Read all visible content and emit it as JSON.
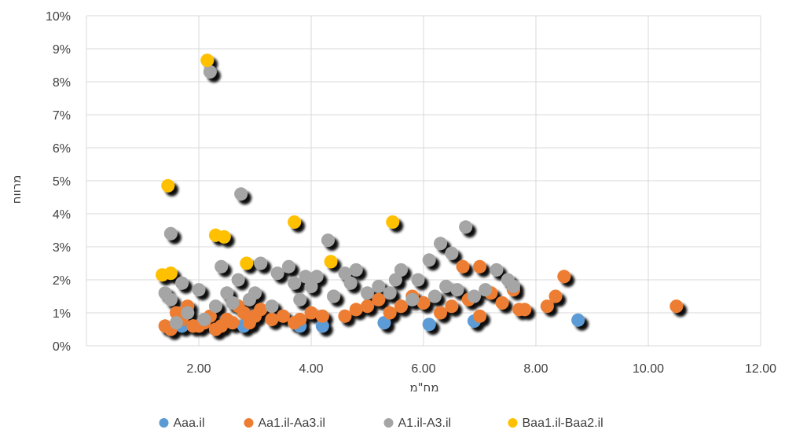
{
  "chart_data": {
    "type": "scatter",
    "title": "",
    "xlabel": "מח\"מ",
    "ylabel": "מרווח",
    "xlim": [
      0,
      12
    ],
    "ylim": [
      0,
      0.1
    ],
    "x_ticks": [
      "2.00",
      "4.00",
      "6.00",
      "8.00",
      "10.00",
      "12.00"
    ],
    "y_ticks": [
      "0%",
      "1%",
      "2%",
      "3%",
      "4%",
      "5%",
      "6%",
      "7%",
      "8%",
      "9%",
      "10%"
    ],
    "grid": true,
    "legend_position": "bottom",
    "series": [
      {
        "name": "Aaa.il",
        "color": "#5b9bd5",
        "points": [
          [
            1.7,
            0.006
          ],
          [
            2.8,
            0.006
          ],
          [
            3.8,
            0.006
          ],
          [
            4.2,
            0.006
          ],
          [
            5.3,
            0.007
          ],
          [
            6.1,
            0.0065
          ],
          [
            6.9,
            0.0075
          ],
          [
            8.75,
            0.0078
          ]
        ]
      },
      {
        "name": "Aa1.il-Aa3.il",
        "color": "#ed7d31",
        "points": [
          [
            1.4,
            0.006
          ],
          [
            1.5,
            0.005
          ],
          [
            1.6,
            0.01
          ],
          [
            1.7,
            0.008
          ],
          [
            1.8,
            0.012
          ],
          [
            1.9,
            0.006
          ],
          [
            2.0,
            0.006
          ],
          [
            2.1,
            0.007
          ],
          [
            2.2,
            0.009
          ],
          [
            2.3,
            0.005
          ],
          [
            2.4,
            0.006
          ],
          [
            2.5,
            0.008
          ],
          [
            2.6,
            0.007
          ],
          [
            2.7,
            0.012
          ],
          [
            2.8,
            0.01
          ],
          [
            2.9,
            0.007
          ],
          [
            3.0,
            0.009
          ],
          [
            3.1,
            0.011
          ],
          [
            3.3,
            0.008
          ],
          [
            3.5,
            0.009
          ],
          [
            3.7,
            0.007
          ],
          [
            3.8,
            0.008
          ],
          [
            4.0,
            0.01
          ],
          [
            4.2,
            0.009
          ],
          [
            4.4,
            0.015
          ],
          [
            4.6,
            0.009
          ],
          [
            4.8,
            0.011
          ],
          [
            5.0,
            0.012
          ],
          [
            5.2,
            0.014
          ],
          [
            5.4,
            0.01
          ],
          [
            5.6,
            0.012
          ],
          [
            5.8,
            0.015
          ],
          [
            6.0,
            0.013
          ],
          [
            6.3,
            0.01
          ],
          [
            6.5,
            0.012
          ],
          [
            6.7,
            0.024
          ],
          [
            6.8,
            0.014
          ],
          [
            7.0,
            0.024
          ],
          [
            7.0,
            0.009
          ],
          [
            7.2,
            0.016
          ],
          [
            7.4,
            0.013
          ],
          [
            7.6,
            0.017
          ],
          [
            7.7,
            0.011
          ],
          [
            7.8,
            0.011
          ],
          [
            8.2,
            0.012
          ],
          [
            8.35,
            0.015
          ],
          [
            8.5,
            0.021
          ],
          [
            10.5,
            0.012
          ]
        ]
      },
      {
        "name": "A1.il-A3.il",
        "color": "#a5a5a5",
        "points": [
          [
            1.4,
            0.016
          ],
          [
            1.5,
            0.034
          ],
          [
            1.5,
            0.014
          ],
          [
            1.6,
            0.007
          ],
          [
            1.7,
            0.019
          ],
          [
            1.8,
            0.01
          ],
          [
            2.0,
            0.017
          ],
          [
            2.1,
            0.008
          ],
          [
            2.2,
            0.083
          ],
          [
            2.3,
            0.012
          ],
          [
            2.4,
            0.024
          ],
          [
            2.5,
            0.016
          ],
          [
            2.6,
            0.013
          ],
          [
            2.7,
            0.02
          ],
          [
            2.75,
            0.046
          ],
          [
            2.9,
            0.014
          ],
          [
            3.0,
            0.016
          ],
          [
            3.1,
            0.025
          ],
          [
            3.3,
            0.012
          ],
          [
            3.4,
            0.022
          ],
          [
            3.6,
            0.024
          ],
          [
            3.7,
            0.019
          ],
          [
            3.8,
            0.014
          ],
          [
            3.9,
            0.021
          ],
          [
            4.0,
            0.018
          ],
          [
            4.1,
            0.021
          ],
          [
            4.3,
            0.032
          ],
          [
            4.4,
            0.015
          ],
          [
            4.6,
            0.022
          ],
          [
            4.7,
            0.019
          ],
          [
            4.8,
            0.023
          ],
          [
            5.0,
            0.016
          ],
          [
            5.2,
            0.018
          ],
          [
            5.4,
            0.016
          ],
          [
            5.5,
            0.02
          ],
          [
            5.6,
            0.023
          ],
          [
            5.8,
            0.014
          ],
          [
            5.9,
            0.02
          ],
          [
            6.1,
            0.026
          ],
          [
            6.2,
            0.015
          ],
          [
            6.3,
            0.031
          ],
          [
            6.4,
            0.018
          ],
          [
            6.5,
            0.028
          ],
          [
            6.6,
            0.017
          ],
          [
            6.75,
            0.036
          ],
          [
            6.9,
            0.015
          ],
          [
            7.1,
            0.017
          ],
          [
            7.3,
            0.023
          ],
          [
            7.5,
            0.02
          ],
          [
            7.6,
            0.018
          ]
        ]
      },
      {
        "name": "Baa1.il-Baa2.il",
        "color": "#ffc000",
        "points": [
          [
            1.35,
            0.0215
          ],
          [
            1.45,
            0.0485
          ],
          [
            1.5,
            0.022
          ],
          [
            2.15,
            0.0865
          ],
          [
            2.3,
            0.0335
          ],
          [
            2.45,
            0.033
          ],
          [
            2.85,
            0.025
          ],
          [
            3.7,
            0.0375
          ],
          [
            4.35,
            0.0255
          ],
          [
            5.45,
            0.0375
          ]
        ]
      }
    ]
  }
}
